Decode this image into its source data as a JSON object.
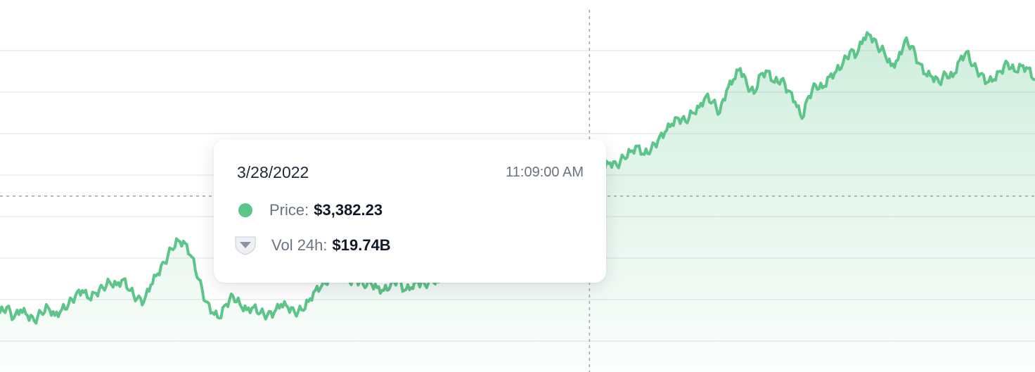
{
  "tooltip": {
    "date": "3/28/2022",
    "time": "11:09:00 AM",
    "price_label": "Price:",
    "price_value": "$3,382.23",
    "volume_label": "Vol 24h:",
    "volume_value": "$19.74B",
    "price_icon": "green-dot-icon",
    "volume_icon": "volume-shield-icon"
  },
  "chart_data": {
    "type": "area",
    "series": [
      {
        "color": "#5ec58a",
        "values": [
          10,
          12,
          8,
          11,
          9,
          7,
          10,
          12,
          9,
          11,
          13,
          16,
          18,
          15,
          17,
          19,
          21,
          20,
          22,
          18,
          15,
          14,
          20,
          24,
          28,
          33,
          36,
          35,
          30,
          22,
          14,
          10,
          8,
          13,
          16,
          13,
          11,
          12,
          10,
          9,
          10,
          13,
          12,
          10,
          11,
          14,
          18,
          20,
          22,
          24,
          23,
          21,
          22,
          20,
          21,
          19,
          18,
          20,
          22,
          18,
          19,
          21,
          20,
          22,
          21,
          27,
          29,
          31,
          33,
          30,
          31,
          35,
          37,
          33,
          34,
          37,
          35,
          36,
          33,
          34,
          35,
          32,
          31,
          29,
          36,
          44,
          52,
          58,
          62,
          64,
          63,
          66,
          68,
          70,
          67,
          69,
          72,
          75,
          78,
          80,
          79,
          82,
          84,
          88,
          86,
          82,
          90,
          94,
          98,
          92,
          89,
          96,
          97,
          93,
          94,
          90,
          86,
          80,
          88,
          92,
          91,
          95,
          97,
          100,
          104,
          103,
          109,
          110,
          106,
          104,
          99,
          101,
          108,
          106,
          100,
          96,
          95,
          93,
          96,
          95,
          101,
          104,
          99,
          96,
          93,
          94,
          97,
          100,
          97,
          99,
          98,
          94
        ],
        "color_fill": "#5ec58a"
      }
    ],
    "crosshair_index": 86,
    "grid": true,
    "grid_line_color": "#e5e7eb",
    "crosshair_color": "#9ca3af",
    "tooltip_shadow_color": "#0f172a"
  }
}
